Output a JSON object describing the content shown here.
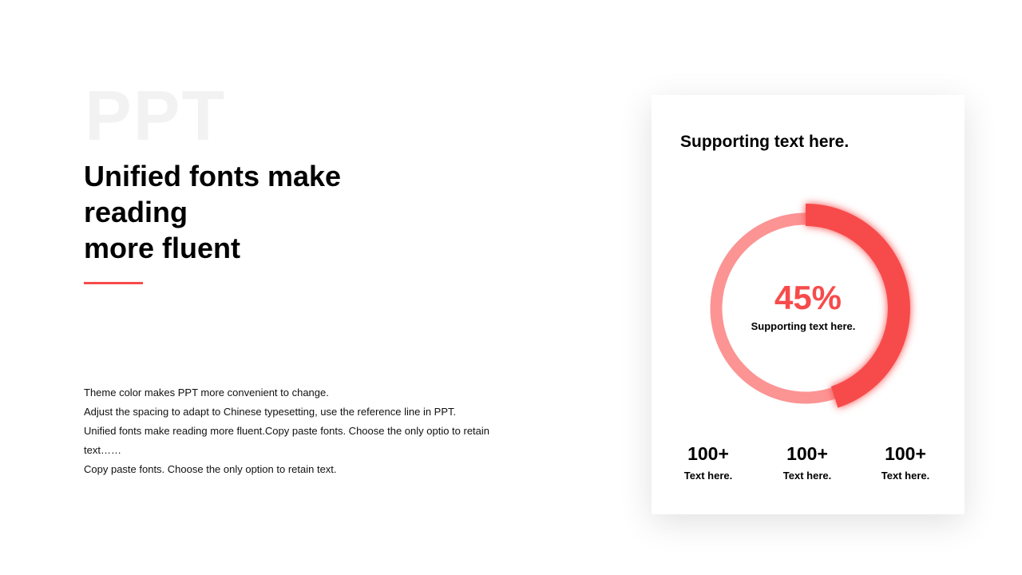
{
  "background_word": "PPT",
  "title_lines": [
    "Unified fonts make",
    "reading",
    "more fluent"
  ],
  "body_lines": [
    "Theme  color makes PPT more convenient  to change.",
    "Adjust the spacing to adapt to Chinese typesetting, use the reference line in PPT.",
    "Unified  fonts make reading more fluent.Copy paste fonts. Choose the only optio to retain text……",
    "Copy paste  fonts. Choose the only option to retain text."
  ],
  "card": {
    "title": "Supporting text here.",
    "progress": {
      "value": 45,
      "label": "45%",
      "caption": "Supporting text here."
    },
    "stats": [
      {
        "value": "100+",
        "label": "Text here."
      },
      {
        "value": "100+",
        "label": "Text here."
      },
      {
        "value": "100+",
        "label": "Text here."
      }
    ]
  },
  "colors": {
    "accent": "#f74b4b",
    "track": "#fc9494"
  }
}
